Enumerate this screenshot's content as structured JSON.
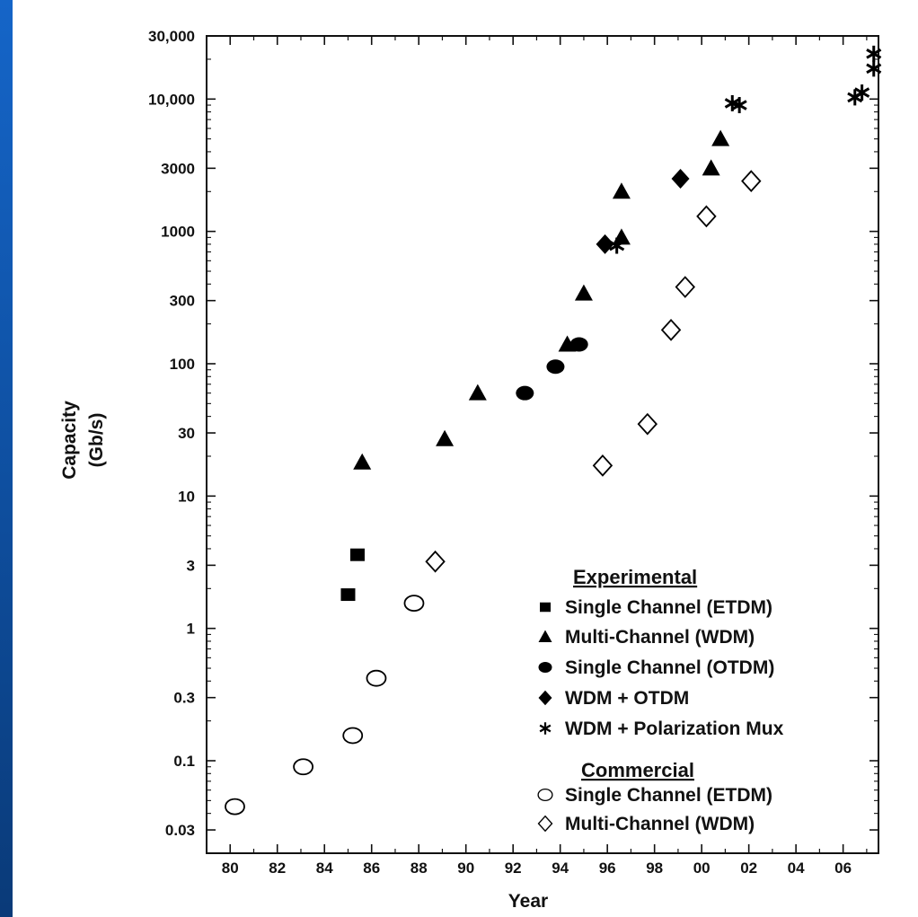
{
  "chart_data": {
    "type": "scatter",
    "xlabel": "Year",
    "ylabel": [
      "Capacity",
      "(Gb/s)"
    ],
    "y_scale": "log",
    "xlim": [
      1979,
      2007.5
    ],
    "ylim": [
      0.02,
      30000
    ],
    "x_ticks": [
      1980,
      1982,
      1984,
      1986,
      1988,
      1990,
      1992,
      1994,
      1996,
      1998,
      2000,
      2002,
      2004,
      2006
    ],
    "x_tick_labels": [
      "80",
      "82",
      "84",
      "86",
      "88",
      "90",
      "92",
      "94",
      "96",
      "98",
      "00",
      "02",
      "04",
      "06"
    ],
    "y_ticks": [
      0.03,
      0.1,
      0.3,
      1,
      3,
      10,
      30,
      100,
      300,
      1000,
      3000,
      10000,
      30000
    ],
    "y_tick_labels": [
      "0.03",
      "0.1",
      "0.3",
      "1",
      "3",
      "10",
      "30",
      "100",
      "300",
      "1000",
      "3000",
      "10,000",
      "30,000"
    ],
    "legend": {
      "experimental_title": "Experimental",
      "commercial_title": "Commercial",
      "placement": "bottom-right"
    },
    "series": [
      {
        "name": "Single Channel (ETDM)",
        "group": "Experimental",
        "marker": "square",
        "points": [
          [
            1985.0,
            1.8
          ],
          [
            1985.4,
            3.6
          ]
        ]
      },
      {
        "name": "Multi-Channel (WDM)",
        "group": "Experimental",
        "marker": "triangle",
        "points": [
          [
            1985.6,
            18
          ],
          [
            1989.1,
            27
          ],
          [
            1990.5,
            60
          ],
          [
            1994.3,
            140
          ],
          [
            1995.0,
            340
          ],
          [
            1996.6,
            900
          ],
          [
            1996.6,
            2000
          ],
          [
            2000.4,
            3000
          ],
          [
            2000.8,
            5000
          ]
        ]
      },
      {
        "name": "Single Channel (OTDM)",
        "group": "Experimental",
        "marker": "circle",
        "points": [
          [
            1992.5,
            60
          ],
          [
            1993.8,
            95
          ],
          [
            1994.8,
            140
          ]
        ]
      },
      {
        "name": "WDM + OTDM",
        "group": "Experimental",
        "marker": "diamond",
        "points": [
          [
            1995.9,
            800
          ],
          [
            1999.1,
            2500
          ]
        ]
      },
      {
        "name": "WDM + Polarization Mux",
        "group": "Experimental",
        "marker": "star",
        "points": [
          [
            1996.4,
            780
          ],
          [
            2001.3,
            9300
          ],
          [
            2001.6,
            9000
          ],
          [
            2006.5,
            10300
          ],
          [
            2006.8,
            11200
          ],
          [
            2007.3,
            17000
          ],
          [
            2007.3,
            22000
          ]
        ]
      },
      {
        "name": "Single Channel (ETDM)",
        "group": "Commercial",
        "marker": "open-circle",
        "points": [
          [
            1980.2,
            0.045
          ],
          [
            1983.1,
            0.09
          ],
          [
            1985.2,
            0.155
          ],
          [
            1986.2,
            0.42
          ],
          [
            1987.8,
            1.55
          ]
        ]
      },
      {
        "name": "Multi-Channel (WDM)",
        "group": "Commercial",
        "marker": "open-diamond",
        "points": [
          [
            1988.7,
            3.2
          ],
          [
            1995.8,
            17
          ],
          [
            1997.7,
            35
          ],
          [
            1998.7,
            180
          ],
          [
            1999.3,
            380
          ],
          [
            2000.2,
            1300
          ],
          [
            2002.1,
            2400
          ]
        ]
      }
    ]
  }
}
